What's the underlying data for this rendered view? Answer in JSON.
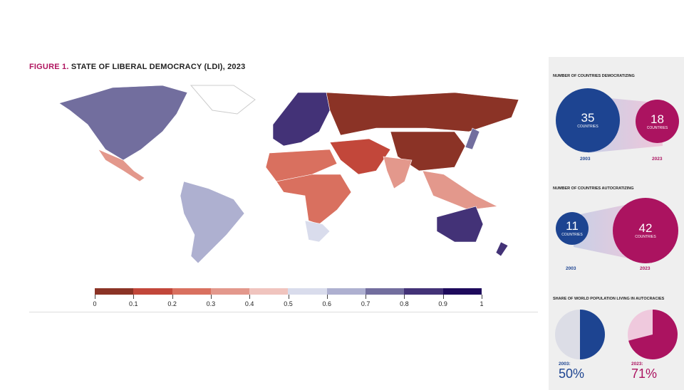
{
  "figure": {
    "label": "FIGURE 1.",
    "title": "STATE OF LIBERAL DEMOCRACY (LDI), 2023"
  },
  "chart_data": {
    "type": "choropleth",
    "title": "STATE OF LIBERAL DEMOCRACY (LDI), 2023",
    "scale": {
      "ticks": [
        "0",
        "0.1",
        "0.2",
        "0.3",
        "0.4",
        "0.5",
        "0.6",
        "0.7",
        "0.8",
        "0.9",
        "1"
      ],
      "colors": [
        "#8b3326",
        "#c2473a",
        "#d9705f",
        "#e3988c",
        "#f0c4be",
        "#d9dcec",
        "#aeb0d0",
        "#726e9e",
        "#433277",
        "#1e0a5c"
      ]
    },
    "regions": [
      {
        "name": "North America",
        "class": 0.7
      },
      {
        "name": "Mexico/Central America",
        "class": 0.3
      },
      {
        "name": "South America",
        "class": 0.6
      },
      {
        "name": "Europe",
        "class": 0.8
      },
      {
        "name": "Russia",
        "class": 0.0
      },
      {
        "name": "Middle East",
        "class": 0.1
      },
      {
        "name": "North Africa",
        "class": 0.2
      },
      {
        "name": "Sub-Saharan Africa",
        "class": 0.2
      },
      {
        "name": "Southern Africa",
        "class": 0.5
      },
      {
        "name": "China",
        "class": 0.0
      },
      {
        "name": "India",
        "class": 0.3
      },
      {
        "name": "Southeast Asia",
        "class": 0.3
      },
      {
        "name": "Japan",
        "class": 0.7
      },
      {
        "name": "Australia",
        "class": 0.8
      },
      {
        "name": "New Zealand",
        "class": 0.8
      }
    ]
  },
  "sidebar": {
    "democratizing": {
      "heading": "NUMBER OF COUNTRIES DEMOCRATIZING",
      "a": {
        "value": "35",
        "unit": "COUNTRIES",
        "year": "2003"
      },
      "b": {
        "value": "18",
        "unit": "COUNTRIES",
        "year": "2023"
      }
    },
    "autocratizing": {
      "heading": "NUMBER OF COUNTRIES AUTOCRATIZING",
      "a": {
        "value": "11",
        "unit": "COUNTRIES",
        "year": "2003"
      },
      "b": {
        "value": "42",
        "unit": "COUNTRIES",
        "year": "2023"
      }
    },
    "population": {
      "heading": "SHARE OF WORLD POPULATION LIVING IN AUTOCRACIES",
      "a": {
        "year": "2003:",
        "value": "50%",
        "share": 50
      },
      "b": {
        "year": "2023:",
        "value": "71%",
        "share": 71
      }
    }
  }
}
